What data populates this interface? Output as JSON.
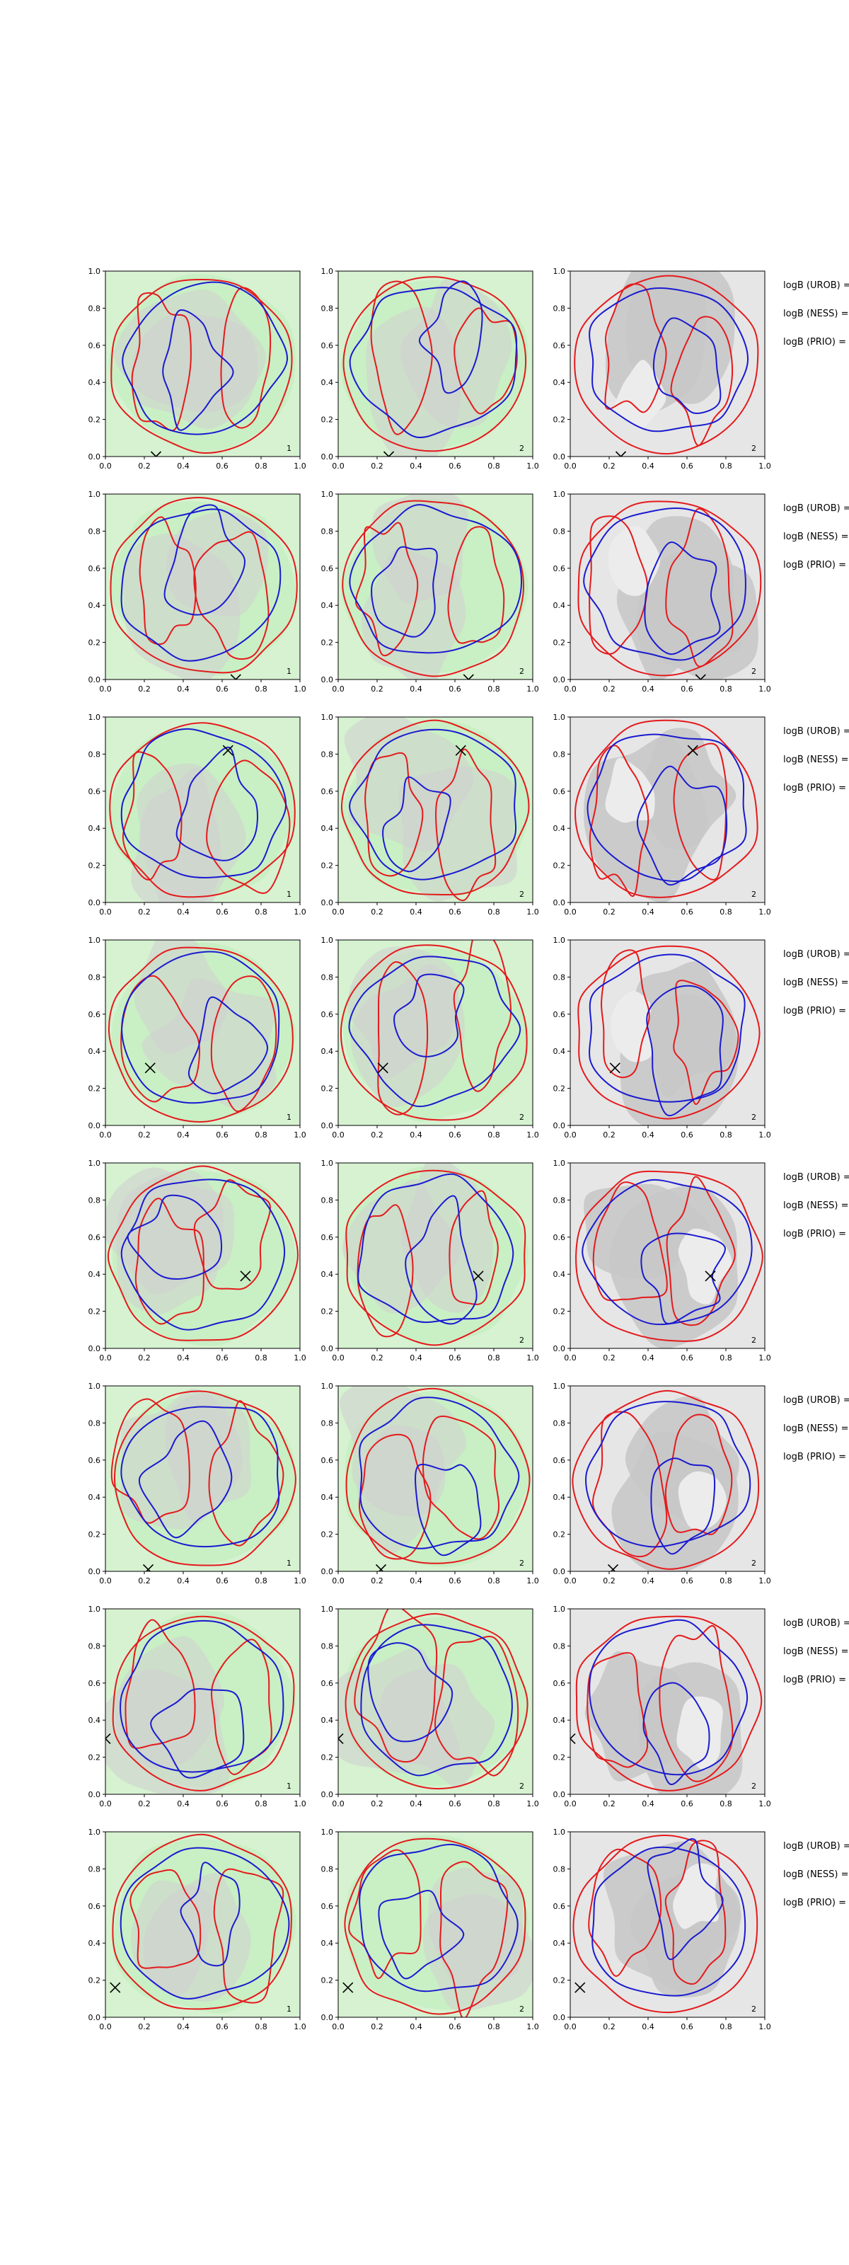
{
  "chart_data": {
    "type": "contour",
    "grid": {
      "rows": 8,
      "cols": 3
    },
    "xlim": [
      0.0,
      1.0
    ],
    "ylim": [
      0.0,
      1.0
    ],
    "xticks": [
      "0.0",
      "0.2",
      "0.4",
      "0.6",
      "0.8",
      "1.0"
    ],
    "yticks": [
      "0.0",
      "0.2",
      "0.4",
      "0.6",
      "0.8",
      "1.0"
    ],
    "side_labels": [
      "logB (UROB) =",
      "logB (NESS) =",
      "logB (PRIO) ="
    ],
    "colors": {
      "red_contour": "#e41a1c",
      "blue_contour": "#1a1ad0",
      "green_fill": "#c9efc4",
      "gray_fill": "#cfcfcf",
      "panel_gray": "#e6e6e6"
    },
    "rows": [
      {
        "marker": [
          0.26,
          0.0
        ],
        "corner_labels": [
          "1",
          "2",
          "2"
        ]
      },
      {
        "marker": [
          0.67,
          0.0
        ],
        "corner_labels": [
          "1",
          "2",
          "2"
        ]
      },
      {
        "marker": [
          0.63,
          0.82
        ],
        "corner_labels": [
          "1",
          "2",
          "2"
        ]
      },
      {
        "marker": [
          0.23,
          0.31
        ],
        "corner_labels": [
          "1",
          "2",
          "2"
        ]
      },
      {
        "marker": [
          0.72,
          0.39
        ],
        "corner_labels": [
          "",
          "2",
          "2"
        ]
      },
      {
        "marker": [
          0.22,
          0.01
        ],
        "corner_labels": [
          "1",
          "2",
          "2"
        ]
      },
      {
        "marker": [
          0.0,
          0.3
        ],
        "corner_labels": [
          "1",
          "2",
          "2"
        ]
      },
      {
        "marker": [
          0.05,
          0.16
        ],
        "corner_labels": [
          "1",
          "2",
          "2"
        ]
      }
    ]
  }
}
